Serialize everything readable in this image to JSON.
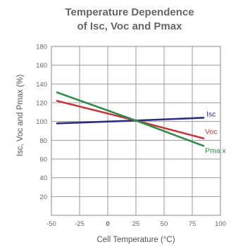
{
  "chart_data": {
    "type": "line",
    "title_lines": [
      "Temperature Dependence",
      "of Isc, Voc and Pmax"
    ],
    "xlabel": "Cell Temperature (°C)",
    "ylabel": "Isc, Voc and Pmax (%)",
    "xlim": [
      -50,
      100
    ],
    "ylim": [
      0,
      180
    ],
    "x_ticks": [
      -50,
      -25,
      0,
      25,
      50,
      75,
      100
    ],
    "x_tick_labels": [
      "-50",
      "-25",
      "0",
      "25",
      "50",
      "75",
      "100"
    ],
    "y_ticks": [
      20,
      40,
      60,
      80,
      100,
      120,
      140,
      160,
      180
    ],
    "y_tick_labels": [
      "20",
      "40",
      "60",
      "80",
      "100",
      "120",
      "140",
      "160",
      "180"
    ],
    "grid": true,
    "legend": "inline labels at line ends",
    "series": [
      {
        "name": "Isc",
        "color": "#2b2f7d",
        "x": [
          -45,
          25,
          85
        ],
        "y": [
          98,
          101,
          104
        ]
      },
      {
        "name": "Voc",
        "color": "#c0393b",
        "x": [
          -45,
          25,
          85
        ],
        "y": [
          122,
          101,
          82
        ]
      },
      {
        "name": "Pma x",
        "color": "#2e8b4a",
        "x": [
          -45,
          25,
          85
        ],
        "y": [
          131,
          101,
          74
        ]
      }
    ]
  }
}
